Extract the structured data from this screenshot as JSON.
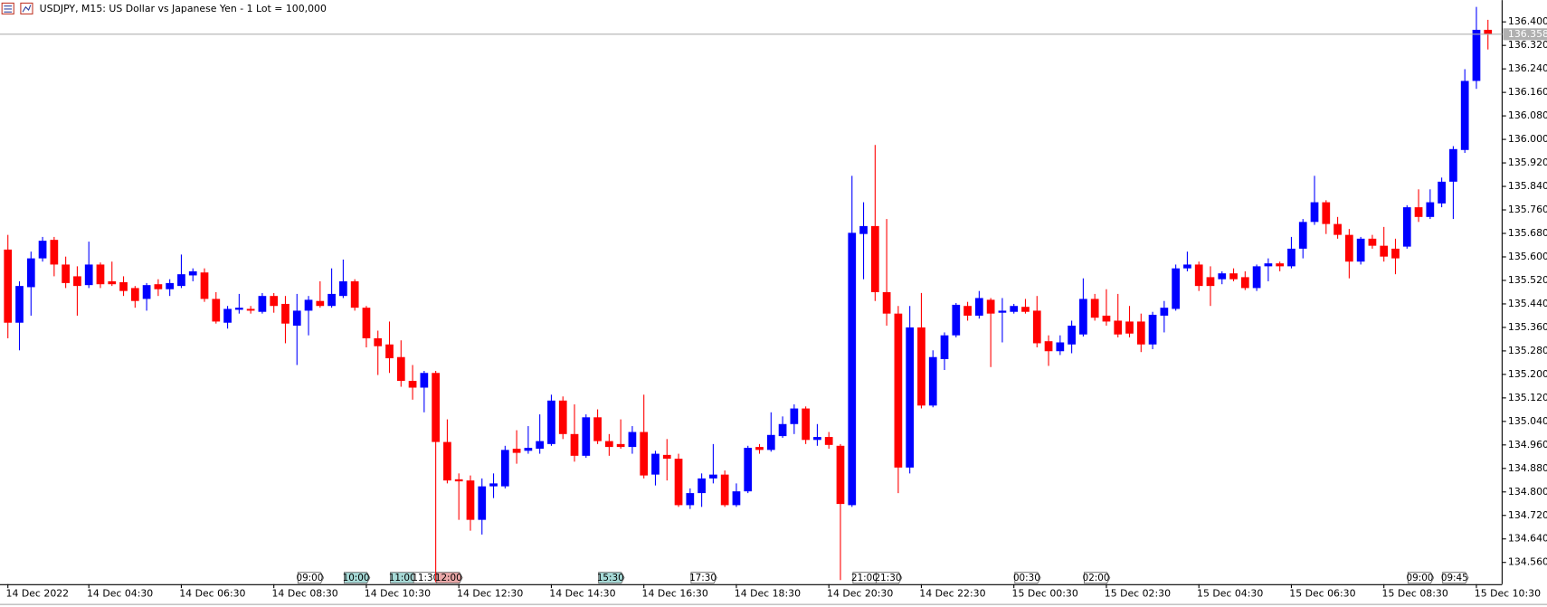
{
  "chart_data": {
    "type": "candlestick",
    "title": "USDJPY, M15:  US Dollar vs Japanese Yen - 1 Lot = 100,000",
    "up_color": "#0000ff",
    "down_color": "#ff0000",
    "grid": false,
    "ylim": [
      134.486,
      136.474
    ],
    "yticks": [
      {
        "value": 134.56,
        "label": "134.560"
      },
      {
        "value": 134.64,
        "label": "134.640"
      },
      {
        "value": 134.72,
        "label": "134.720"
      },
      {
        "value": 134.8,
        "label": "134.800"
      },
      {
        "value": 134.88,
        "label": "134.880"
      },
      {
        "value": 134.96,
        "label": "134.960"
      },
      {
        "value": 135.04,
        "label": "135.040"
      },
      {
        "value": 135.12,
        "label": "135.120"
      },
      {
        "value": 135.2,
        "label": "135.200"
      },
      {
        "value": 135.28,
        "label": "135.280"
      },
      {
        "value": 135.36,
        "label": "135.360"
      },
      {
        "value": 135.44,
        "label": "135.440"
      },
      {
        "value": 135.52,
        "label": "135.520"
      },
      {
        "value": 135.6,
        "label": "135.600"
      },
      {
        "value": 135.68,
        "label": "135.680"
      },
      {
        "value": 135.76,
        "label": "135.760"
      },
      {
        "value": 135.84,
        "label": "135.840"
      },
      {
        "value": 135.92,
        "label": "135.920"
      },
      {
        "value": 136.0,
        "label": "136.000"
      },
      {
        "value": 136.08,
        "label": "136.080"
      },
      {
        "value": 136.16,
        "label": "136.160"
      },
      {
        "value": 136.24,
        "label": "136.240"
      },
      {
        "value": 136.32,
        "label": "136.320"
      },
      {
        "value": 136.4,
        "label": "136.400"
      }
    ],
    "current_price": 136.358,
    "categories": [
      "14 Dec 2022",
      null,
      null,
      null,
      null,
      null,
      null,
      "14 Dec 04:30",
      null,
      null,
      null,
      null,
      null,
      null,
      null,
      "14 Dec 06:30",
      null,
      null,
      null,
      null,
      null,
      null,
      null,
      "14 Dec 08:30",
      null,
      null,
      null,
      null,
      null,
      null,
      null,
      "14 Dec 10:30",
      null,
      null,
      null,
      null,
      null,
      null,
      null,
      "14 Dec 12:30",
      null,
      null,
      null,
      null,
      null,
      null,
      null,
      "14 Dec 14:30",
      null,
      null,
      null,
      null,
      null,
      null,
      null,
      "14 Dec 16:30",
      null,
      null,
      null,
      null,
      null,
      null,
      null,
      "14 Dec 18:30",
      null,
      null,
      null,
      null,
      null,
      null,
      null,
      "14 Dec 20:30",
      null,
      null,
      null,
      null,
      null,
      null,
      null,
      "14 Dec 22:30",
      null,
      null,
      null,
      null,
      null,
      null,
      null,
      "15 Dec 00:30",
      null,
      null,
      null,
      null,
      null,
      null,
      null,
      "15 Dec 02:30",
      null,
      null,
      null,
      null,
      null,
      null,
      null,
      "15 Dec 04:30",
      null,
      null,
      null,
      null,
      null,
      null,
      null,
      "15 Dec 06:30",
      null,
      null,
      null,
      null,
      null,
      null,
      null,
      "15 Dec 08:30",
      null,
      null,
      null,
      null,
      null,
      null,
      null,
      "15 Dec 10:30",
      null
    ],
    "events": [
      null,
      null,
      null,
      null,
      null,
      null,
      null,
      null,
      null,
      null,
      null,
      null,
      null,
      null,
      null,
      null,
      null,
      null,
      null,
      null,
      null,
      null,
      null,
      null,
      null,
      {
        "label": "09:00",
        "color": "#ffffff"
      },
      null,
      null,
      null,
      {
        "label": "10:00",
        "color": "#a6d9d6"
      },
      null,
      null,
      null,
      {
        "label": "11:00",
        "color": "#a6d9d6"
      },
      null,
      {
        "label": "11:30",
        "color": "#ffffff"
      },
      null,
      {
        "label": "12:00",
        "color": "#eaa8a8"
      },
      null,
      null,
      null,
      null,
      null,
      null,
      null,
      null,
      null,
      null,
      null,
      null,
      null,
      {
        "label": "15:30",
        "color": "#a6d9d6"
      },
      null,
      null,
      null,
      null,
      null,
      null,
      null,
      {
        "label": "17:30",
        "color": "#ffffff"
      },
      null,
      null,
      null,
      null,
      null,
      null,
      null,
      null,
      null,
      null,
      null,
      null,
      null,
      {
        "label": "21:00",
        "color": "#ffffff"
      },
      null,
      {
        "label": "21:30",
        "color": "#ffffff"
      },
      null,
      null,
      null,
      null,
      null,
      null,
      null,
      null,
      null,
      null,
      null,
      {
        "label": "00:30",
        "color": "#ffffff"
      },
      null,
      null,
      null,
      null,
      null,
      {
        "label": "02:00",
        "color": "#ffffff"
      },
      null,
      null,
      null,
      null,
      null,
      null,
      null,
      null,
      null,
      null,
      null,
      null,
      null,
      null,
      null,
      null,
      null,
      null,
      null,
      null,
      null,
      null,
      null,
      null,
      null,
      null,
      null,
      {
        "label": "09:00",
        "color": "#ffffff"
      },
      null,
      null,
      {
        "label": "09:45",
        "color": "#ffffff"
      },
      null,
      null,
      null,
      null
    ],
    "ohlc": [
      [
        135.625,
        135.675,
        135.323,
        135.376
      ],
      [
        135.376,
        135.517,
        135.282,
        135.501
      ],
      [
        135.497,
        135.618,
        135.4,
        135.595
      ],
      [
        135.595,
        135.668,
        135.584,
        135.655
      ],
      [
        135.658,
        135.668,
        135.534,
        135.574
      ],
      [
        135.574,
        135.601,
        135.494,
        135.511
      ],
      [
        135.534,
        135.568,
        135.4,
        135.501
      ],
      [
        135.504,
        135.652,
        135.494,
        135.574
      ],
      [
        135.574,
        135.581,
        135.494,
        135.507
      ],
      [
        135.517,
        135.584,
        135.501,
        135.507
      ],
      [
        135.514,
        135.534,
        135.467,
        135.484
      ],
      [
        135.494,
        135.501,
        135.427,
        135.45
      ],
      [
        135.457,
        135.511,
        135.417,
        135.504
      ],
      [
        135.507,
        135.524,
        135.467,
        135.49
      ],
      [
        135.49,
        135.524,
        135.467,
        135.511
      ],
      [
        135.501,
        135.608,
        135.494,
        135.541
      ],
      [
        135.537,
        135.561,
        135.517,
        135.551
      ],
      [
        135.547,
        135.561,
        135.447,
        135.457
      ],
      [
        135.457,
        135.48,
        135.373,
        135.38
      ],
      [
        135.376,
        135.433,
        135.356,
        135.423
      ],
      [
        135.42,
        135.474,
        135.407,
        135.427
      ],
      [
        135.423,
        135.433,
        135.407,
        135.417
      ],
      [
        135.413,
        135.477,
        135.407,
        135.467
      ],
      [
        135.467,
        135.477,
        135.41,
        135.433
      ],
      [
        135.44,
        135.467,
        135.306,
        135.373
      ],
      [
        135.366,
        135.474,
        135.232,
        135.417
      ],
      [
        135.417,
        135.467,
        135.333,
        135.454
      ],
      [
        135.45,
        135.517,
        135.427,
        135.433
      ],
      [
        135.433,
        135.561,
        135.427,
        135.474
      ],
      [
        135.467,
        135.591,
        135.46,
        135.517
      ],
      [
        135.517,
        135.524,
        135.417,
        135.427
      ],
      [
        135.427,
        135.433,
        135.292,
        135.323
      ],
      [
        135.323,
        135.349,
        135.198,
        135.296
      ],
      [
        135.302,
        135.38,
        135.205,
        135.255
      ],
      [
        135.259,
        135.316,
        135.158,
        135.178
      ],
      [
        135.178,
        135.232,
        135.114,
        135.155
      ],
      [
        135.155,
        135.212,
        135.071,
        135.205
      ],
      [
        135.205,
        135.212,
        134.493,
        134.97
      ],
      [
        134.97,
        135.047,
        134.829,
        134.839
      ],
      [
        134.843,
        134.863,
        134.705,
        134.836
      ],
      [
        134.839,
        134.856,
        134.668,
        134.705
      ],
      [
        134.705,
        134.846,
        134.655,
        134.819
      ],
      [
        134.819,
        134.863,
        134.779,
        134.829
      ],
      [
        134.819,
        134.957,
        134.812,
        134.943
      ],
      [
        134.947,
        135.01,
        134.896,
        134.933
      ],
      [
        134.94,
        135.024,
        134.93,
        134.95
      ],
      [
        134.947,
        135.064,
        134.93,
        134.973
      ],
      [
        134.963,
        135.131,
        134.957,
        135.111
      ],
      [
        135.111,
        135.125,
        134.98,
        134.997
      ],
      [
        134.997,
        135.098,
        134.903,
        134.923
      ],
      [
        134.923,
        135.064,
        134.916,
        135.054
      ],
      [
        135.054,
        135.081,
        134.963,
        134.973
      ],
      [
        134.973,
        134.997,
        134.923,
        134.953
      ],
      [
        134.963,
        135.047,
        134.947,
        134.953
      ],
      [
        134.953,
        135.024,
        134.93,
        135.004
      ],
      [
        135.004,
        135.131,
        134.846,
        134.856
      ],
      [
        134.859,
        134.94,
        134.822,
        134.93
      ],
      [
        134.926,
        134.98,
        134.839,
        134.913
      ],
      [
        134.913,
        134.93,
        134.749,
        134.755
      ],
      [
        134.755,
        134.812,
        134.742,
        134.796
      ],
      [
        134.796,
        134.863,
        134.749,
        134.846
      ],
      [
        134.846,
        134.963,
        134.829,
        134.859
      ],
      [
        134.859,
        134.873,
        134.749,
        134.755
      ],
      [
        134.755,
        134.829,
        134.749,
        134.802
      ],
      [
        134.802,
        134.957,
        134.796,
        134.95
      ],
      [
        134.953,
        134.963,
        134.93,
        134.943
      ],
      [
        134.943,
        135.071,
        134.937,
        134.994
      ],
      [
        134.99,
        135.057,
        134.984,
        135.031
      ],
      [
        135.031,
        135.098,
        134.997,
        135.084
      ],
      [
        135.084,
        135.091,
        134.963,
        134.977
      ],
      [
        134.977,
        135.031,
        134.957,
        134.987
      ],
      [
        134.987,
        135.004,
        134.947,
        134.96
      ],
      [
        134.957,
        134.963,
        134.5,
        134.759
      ],
      [
        134.755,
        135.876,
        134.749,
        135.682
      ],
      [
        135.678,
        135.786,
        135.524,
        135.705
      ],
      [
        135.705,
        135.981,
        135.45,
        135.48
      ],
      [
        135.48,
        135.729,
        135.366,
        135.407
      ],
      [
        135.407,
        135.433,
        134.796,
        134.883
      ],
      [
        134.883,
        135.433,
        134.863,
        135.36
      ],
      [
        135.36,
        135.477,
        135.084,
        135.094
      ],
      [
        135.094,
        135.282,
        135.088,
        135.259
      ],
      [
        135.252,
        135.343,
        135.215,
        135.333
      ],
      [
        135.333,
        135.443,
        135.326,
        135.437
      ],
      [
        135.433,
        135.447,
        135.383,
        135.4
      ],
      [
        135.4,
        135.484,
        135.39,
        135.46
      ],
      [
        135.454,
        135.46,
        135.225,
        135.407
      ],
      [
        135.41,
        135.46,
        135.309,
        135.417
      ],
      [
        135.413,
        135.44,
        135.407,
        135.433
      ],
      [
        135.43,
        135.457,
        135.407,
        135.413
      ],
      [
        135.417,
        135.467,
        135.292,
        135.306
      ],
      [
        135.313,
        135.333,
        135.229,
        135.279
      ],
      [
        135.279,
        135.333,
        135.266,
        135.309
      ],
      [
        135.302,
        135.383,
        135.272,
        135.366
      ],
      [
        135.336,
        135.527,
        135.329,
        135.457
      ],
      [
        135.457,
        135.474,
        135.383,
        135.393
      ],
      [
        135.4,
        135.49,
        135.366,
        135.38
      ],
      [
        135.383,
        135.474,
        135.326,
        135.336
      ],
      [
        135.38,
        135.433,
        135.326,
        135.339
      ],
      [
        135.38,
        135.407,
        135.276,
        135.302
      ],
      [
        135.302,
        135.413,
        135.286,
        135.403
      ],
      [
        135.4,
        135.45,
        135.343,
        135.427
      ],
      [
        135.423,
        135.574,
        135.417,
        135.561
      ],
      [
        135.561,
        135.618,
        135.551,
        135.574
      ],
      [
        135.574,
        135.584,
        135.484,
        135.501
      ],
      [
        135.531,
        135.568,
        135.433,
        135.501
      ],
      [
        135.524,
        135.551,
        135.507,
        135.544
      ],
      [
        135.544,
        135.561,
        135.517,
        135.524
      ],
      [
        135.531,
        135.551,
        135.487,
        135.494
      ],
      [
        135.494,
        135.574,
        135.484,
        135.568
      ],
      [
        135.568,
        135.595,
        135.517,
        135.578
      ],
      [
        135.578,
        135.584,
        135.551,
        135.568
      ],
      [
        135.568,
        135.668,
        135.561,
        135.628
      ],
      [
        135.628,
        135.729,
        135.595,
        135.719
      ],
      [
        135.719,
        135.876,
        135.709,
        135.786
      ],
      [
        135.786,
        135.793,
        135.678,
        135.712
      ],
      [
        135.712,
        135.736,
        135.662,
        135.675
      ],
      [
        135.675,
        135.695,
        135.527,
        135.584
      ],
      [
        135.584,
        135.668,
        135.574,
        135.662
      ],
      [
        135.662,
        135.675,
        135.628,
        135.638
      ],
      [
        135.638,
        135.702,
        135.584,
        135.601
      ],
      [
        135.628,
        135.662,
        135.541,
        135.595
      ],
      [
        135.635,
        135.776,
        135.628,
        135.769
      ],
      [
        135.769,
        135.83,
        135.719,
        135.736
      ],
      [
        135.736,
        135.83,
        135.729,
        135.786
      ],
      [
        135.782,
        135.87,
        135.769,
        135.856
      ],
      [
        135.856,
        135.977,
        135.729,
        135.967
      ],
      [
        135.964,
        136.239,
        135.954,
        136.199
      ],
      [
        136.199,
        136.451,
        136.172,
        136.373
      ],
      [
        136.373,
        136.407,
        136.306,
        136.358
      ]
    ]
  }
}
